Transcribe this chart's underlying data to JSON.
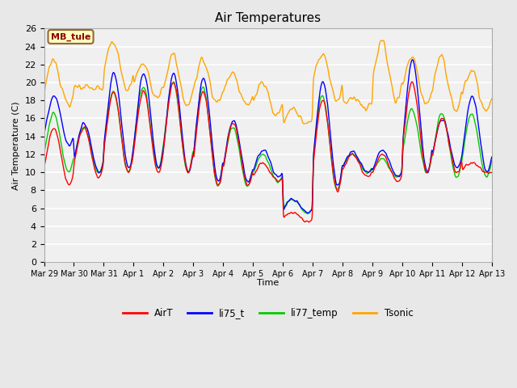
{
  "title": "Air Temperatures",
  "xlabel": "Time",
  "ylabel": "Air Temperature (C)",
  "ylim": [
    0,
    26
  ],
  "yticks": [
    0,
    2,
    4,
    6,
    8,
    10,
    12,
    14,
    16,
    18,
    20,
    22,
    24,
    26
  ],
  "annotation_text": "MB_tule",
  "annotation_color": "#8B0000",
  "annotation_bg": "#FFFFC0",
  "annotation_border": "#996633",
  "colors": {
    "AirT": "#FF0000",
    "li75_t": "#0000FF",
    "li77_temp": "#00CC00",
    "Tsonic": "#FFA500"
  },
  "bg_color": "#E8E8E8",
  "plot_bg": "#F0F0F0",
  "linewidth": 1.0,
  "tick_labels": [
    "Mar 29",
    "Mar 30",
    "Mar 31",
    "Apr 1",
    "Apr 2",
    "Apr 3",
    "Apr 4",
    "Apr 5",
    "Apr 6",
    "Apr 7",
    "Apr 8",
    "Apr 9",
    "Apr 10",
    "Apr 11",
    "Apr 12",
    "Apr 13"
  ],
  "legend_labels": [
    "AirT",
    "li75_t",
    "li77_temp",
    "Tsonic"
  ]
}
